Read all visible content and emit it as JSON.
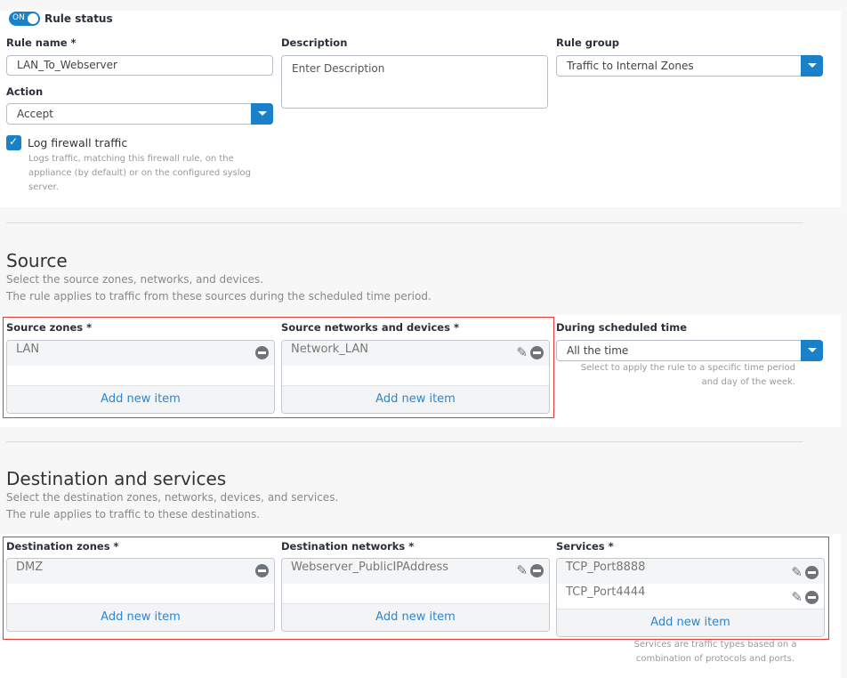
{
  "rule_status": {
    "toggle": "ON",
    "label": "Rule status",
    "on": true
  },
  "rule_name": {
    "label": "Rule name *",
    "value": "LAN_To_Webserver"
  },
  "description": {
    "label": "Description",
    "placeholder": "Enter Description"
  },
  "rule_group": {
    "label": "Rule group",
    "value": "Traffic to Internal Zones"
  },
  "action": {
    "label": "Action",
    "value": "Accept"
  },
  "log": {
    "label": "Log firewall traffic",
    "checked": true,
    "hint": "Logs traffic, matching this firewall rule, on the appliance (by default) or on the configured syslog server."
  },
  "source": {
    "title": "Source",
    "desc1": "Select the source zones, networks, and devices.",
    "desc2": "The rule applies to traffic from these sources during the scheduled time period.",
    "zones": {
      "label": "Source zones *",
      "items": [
        "LAN"
      ],
      "add": "Add new item"
    },
    "networks": {
      "label": "Source networks and devices *",
      "items": [
        "Network_LAN"
      ],
      "add": "Add new item"
    },
    "schedule": {
      "label": "During scheduled time",
      "value": "All the time",
      "hint": "Select to apply the rule to a specific time period and day of the week."
    }
  },
  "destination": {
    "title": "Destination and services",
    "desc1": "Select the destination zones, networks, devices, and services.",
    "desc2": "The rule applies to traffic to these destinations.",
    "zones": {
      "label": "Destination zones *",
      "items": [
        "DMZ"
      ],
      "add": "Add new item"
    },
    "networks": {
      "label": "Destination networks *",
      "items": [
        "Webserver_PublicIPAddress"
      ],
      "add": "Add new item"
    },
    "services": {
      "label": "Services *",
      "items": [
        "TCP_Port8888",
        "TCP_Port4444"
      ],
      "add": "Add new item",
      "hint": "Services are traffic types based on a combination of protocols and ports."
    }
  },
  "colors": {
    "accent": "#1a80c8",
    "highlight": "#e53935",
    "link": "#2d86d0"
  }
}
